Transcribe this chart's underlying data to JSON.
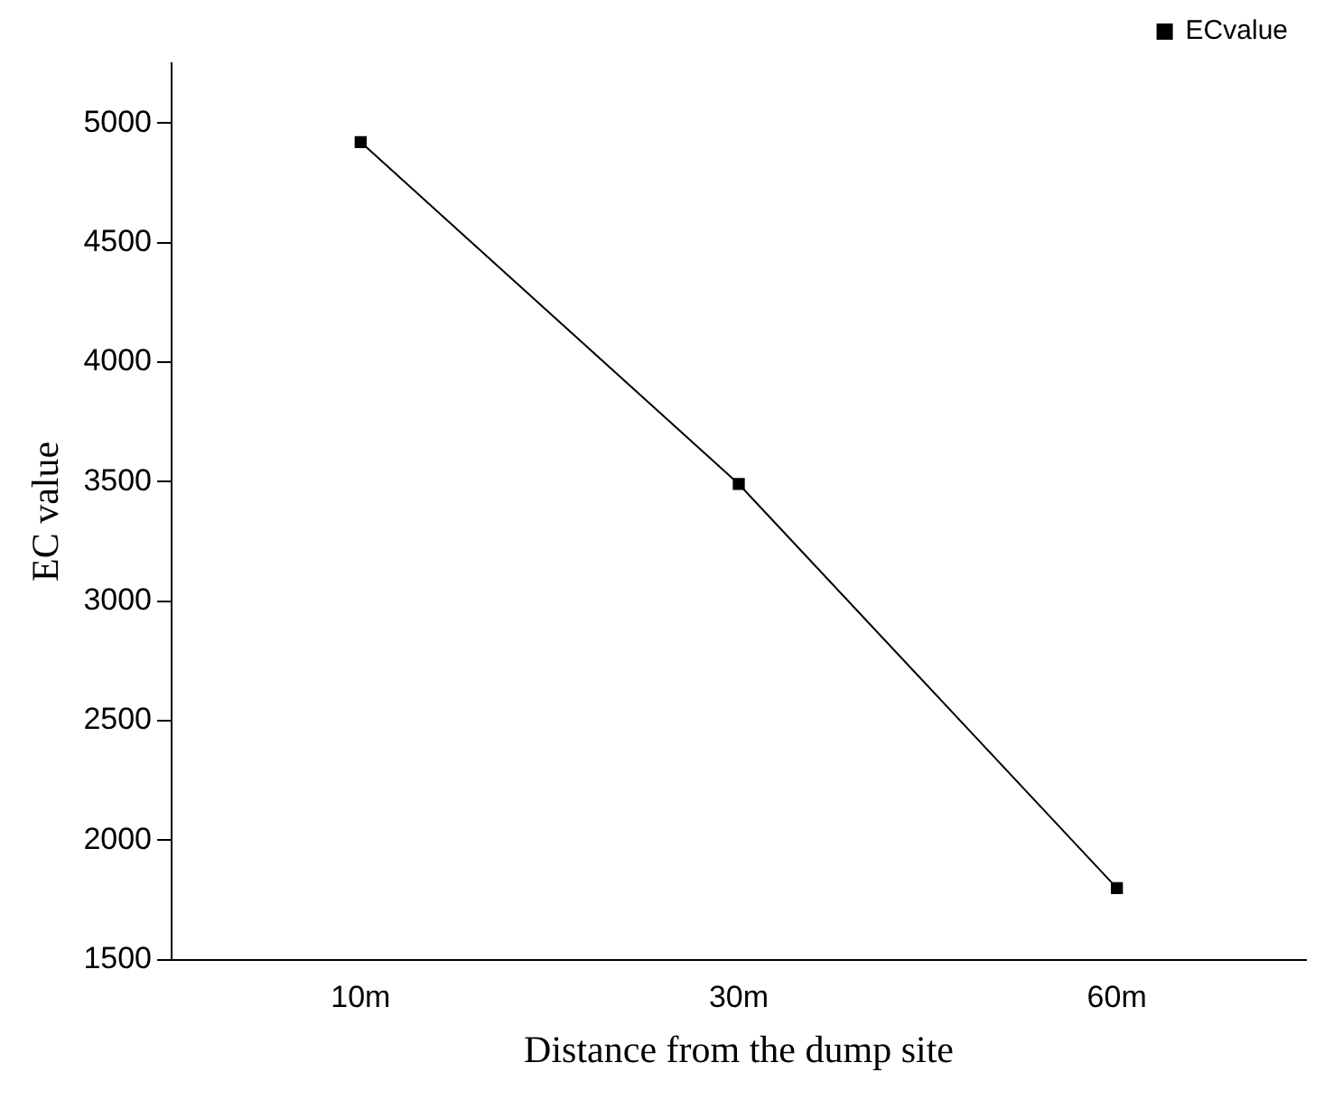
{
  "chart_data": {
    "type": "line",
    "xlabel": "Distance from the dump site",
    "ylabel": "EC value",
    "categories": [
      "10m",
      "30m",
      "60m"
    ],
    "series": [
      {
        "name": "ECvalue",
        "color": "#000000",
        "values": [
          4920,
          3490,
          1800
        ]
      }
    ],
    "ylim": [
      1500,
      5250
    ],
    "yticks": [
      1500,
      2000,
      2500,
      3000,
      3500,
      4000,
      4500,
      5000
    ],
    "grid": false,
    "legend": "top right",
    "marker": "square",
    "line_style": "solid"
  }
}
